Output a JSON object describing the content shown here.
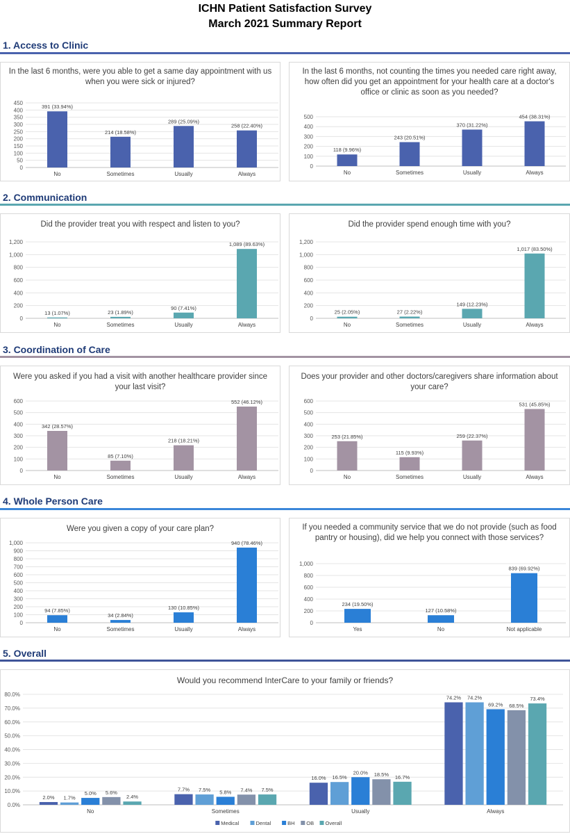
{
  "report": {
    "title_line1": "ICHN Patient Satisfaction Survey",
    "title_line2": "March 2021 Summary Report"
  },
  "sections": [
    {
      "heading": "1. Access to Clinic",
      "rule_color": "#4a62ad"
    },
    {
      "heading": "2. Communication",
      "rule_color": "#5aa7b0"
    },
    {
      "heading": "3. Coordination of Care",
      "rule_color": "#a393a3"
    },
    {
      "heading": "4. Whole Person Care",
      "rule_color": "#3a86d9"
    },
    {
      "heading": "5. Overall",
      "rule_color": "#3e5499"
    }
  ],
  "chart_data": [
    {
      "type": "bar",
      "title": "In the last 6 months, were you able to get a same day appointment with us when you were sick or injured?",
      "categories": [
        "No",
        "Sometimes",
        "Usually",
        "Always"
      ],
      "values": [
        391,
        214,
        289,
        258
      ],
      "data_labels": [
        "391 (33.94%)",
        "214 (18.58%)",
        "289 (25.09%)",
        "258 (22.40%)"
      ],
      "ylim": [
        0,
        450
      ],
      "yticks": [
        0,
        50,
        100,
        150,
        200,
        250,
        300,
        350,
        400,
        450
      ],
      "ytick_labels": [
        "0",
        "50",
        "100",
        "150",
        "200",
        "250",
        "300",
        "350",
        "400",
        "450"
      ],
      "color": "#4a62ad",
      "grid": true
    },
    {
      "type": "bar",
      "title": "In the last 6 months, not counting the times you needed care right away, how often did you get an appointment for your health care at a doctor's office or clinic as soon as you needed?",
      "categories": [
        "No",
        "Sometimes",
        "Usually",
        "Always"
      ],
      "values": [
        118,
        243,
        370,
        454
      ],
      "data_labels": [
        "118 (9.96%)",
        "243 (20.51%)",
        "370 (31.22%)",
        "454 (38.31%)"
      ],
      "ylim": [
        0,
        500
      ],
      "yticks": [
        0,
        100,
        200,
        300,
        400,
        500
      ],
      "ytick_labels": [
        "0",
        "100",
        "200",
        "300",
        "400",
        "500"
      ],
      "color": "#4a62ad",
      "grid": true
    },
    {
      "type": "bar",
      "title": "Did the provider treat you with respect and listen to you?",
      "categories": [
        "No",
        "Sometimes",
        "Usually",
        "Always"
      ],
      "values": [
        13,
        23,
        90,
        1089
      ],
      "data_labels": [
        "13 (1.07%)",
        "23 (1.89%)",
        "90 (7.41%)",
        "1,089 (89.63%)"
      ],
      "ylim": [
        0,
        1200
      ],
      "yticks": [
        0,
        200,
        400,
        600,
        800,
        1000,
        1200
      ],
      "ytick_labels": [
        "0",
        "200",
        "400",
        "600",
        "800",
        "1,000",
        "1,200"
      ],
      "color": "#5aa7b0",
      "grid": true
    },
    {
      "type": "bar",
      "title": "Did the provider spend enough time with you?",
      "categories": [
        "No",
        "Sometimes",
        "Usually",
        "Always"
      ],
      "values": [
        25,
        27,
        149,
        1017
      ],
      "data_labels": [
        "25 (2.05%)",
        "27 (2.22%)",
        "149 (12.23%)",
        "1,017 (83.50%)"
      ],
      "ylim": [
        0,
        1200
      ],
      "yticks": [
        0,
        200,
        400,
        600,
        800,
        1000,
        1200
      ],
      "ytick_labels": [
        "0",
        "200",
        "400",
        "600",
        "800",
        "1,000",
        "1,200"
      ],
      "color": "#5aa7b0",
      "grid": true
    },
    {
      "type": "bar",
      "title": "Were you asked if you had a visit with another healthcare provider since your last visit?",
      "categories": [
        "No",
        "Sometimes",
        "Usually",
        "Always"
      ],
      "values": [
        342,
        85,
        218,
        552
      ],
      "data_labels": [
        "342 (28.57%)",
        "85 (7.10%)",
        "218 (18.21%)",
        "552 (46.12%)"
      ],
      "ylim": [
        0,
        600
      ],
      "yticks": [
        0,
        100,
        200,
        300,
        400,
        500,
        600
      ],
      "ytick_labels": [
        "0",
        "100",
        "200",
        "300",
        "400",
        "500",
        "600"
      ],
      "color": "#a393a3",
      "grid": true
    },
    {
      "type": "bar",
      "title": "Does your provider and other doctors/caregivers share information about your care?",
      "categories": [
        "No",
        "Sometimes",
        "Usually",
        "Always"
      ],
      "values": [
        253,
        115,
        259,
        531
      ],
      "data_labels": [
        "253 (21.85%)",
        "115 (9.93%)",
        "259 (22.37%)",
        "531 (45.85%)"
      ],
      "ylim": [
        0,
        600
      ],
      "yticks": [
        0,
        100,
        200,
        300,
        400,
        500,
        600
      ],
      "ytick_labels": [
        "0",
        "100",
        "200",
        "300",
        "400",
        "500",
        "600"
      ],
      "color": "#a393a3",
      "grid": true
    },
    {
      "type": "bar",
      "title": "Were you given a copy of your care plan?",
      "categories": [
        "No",
        "Sometimes",
        "Usually",
        "Always"
      ],
      "values": [
        94,
        34,
        130,
        940
      ],
      "data_labels": [
        "94 (7.85%)",
        "34 (2.84%)",
        "130 (10.85%)",
        "940 (78.46%)"
      ],
      "ylim": [
        0,
        1000
      ],
      "yticks": [
        0,
        100,
        200,
        300,
        400,
        500,
        600,
        700,
        800,
        900,
        1000
      ],
      "ytick_labels": [
        "0",
        "100",
        "200",
        "300",
        "400",
        "500",
        "600",
        "700",
        "800",
        "900",
        "1,000"
      ],
      "color": "#2a7fd6",
      "grid": true
    },
    {
      "type": "bar",
      "title": "If you needed a community service that we do not provide (such as food pantry or housing), did we help you connect with those services?",
      "categories": [
        "Yes",
        "No",
        "Not applicable"
      ],
      "values": [
        234,
        127,
        839
      ],
      "data_labels": [
        "234 (19.50%)",
        "127 (10.58%)",
        "839 (69.92%)"
      ],
      "ylim": [
        0,
        1000
      ],
      "yticks": [
        0,
        200,
        400,
        600,
        800,
        1000
      ],
      "ytick_labels": [
        "0",
        "200",
        "400",
        "600",
        "800",
        "1,000"
      ],
      "color": "#2a7fd6",
      "grid": true
    },
    {
      "type": "bar",
      "title": "Would you recommend InterCare to your family or friends?",
      "categories": [
        "No",
        "Sometimes",
        "Usually",
        "Always"
      ],
      "series": [
        {
          "name": "Medical",
          "values": [
            2.0,
            7.7,
            16.0,
            74.2
          ],
          "data_labels": [
            "2.0%",
            "7.7%",
            "16.0%",
            "74.2%"
          ],
          "color": "#4a62ad"
        },
        {
          "name": "Dental",
          "values": [
            1.7,
            7.5,
            16.5,
            74.2
          ],
          "data_labels": [
            "1.7%",
            "7.5%",
            "16.5%",
            "74.2%"
          ],
          "color": "#5f9fd6"
        },
        {
          "name": "BH",
          "values": [
            5.0,
            5.8,
            20.0,
            69.2
          ],
          "data_labels": [
            "5.0%",
            "5.8%",
            "20.0%",
            "69.2%"
          ],
          "color": "#2a7fd6"
        },
        {
          "name": "OB",
          "values": [
            5.6,
            7.4,
            18.5,
            68.5
          ],
          "data_labels": [
            "5.6%",
            "7.4%",
            "18.5%",
            "68.5%"
          ],
          "color": "#8391aa"
        },
        {
          "name": "Overall",
          "values": [
            2.4,
            7.5,
            16.7,
            73.4
          ],
          "data_labels": [
            "2.4%",
            "7.5%",
            "16.7%",
            "73.4%"
          ],
          "color": "#5aa7b0"
        }
      ],
      "ylim": [
        0,
        80
      ],
      "yticks": [
        0,
        10,
        20,
        30,
        40,
        50,
        60,
        70,
        80
      ],
      "ytick_labels": [
        "0.0%",
        "10.0%",
        "20.0%",
        "30.0%",
        "40.0%",
        "50.0%",
        "60.0%",
        "70.0%",
        "80.0%"
      ],
      "legend": "bottom",
      "grid": true
    }
  ]
}
